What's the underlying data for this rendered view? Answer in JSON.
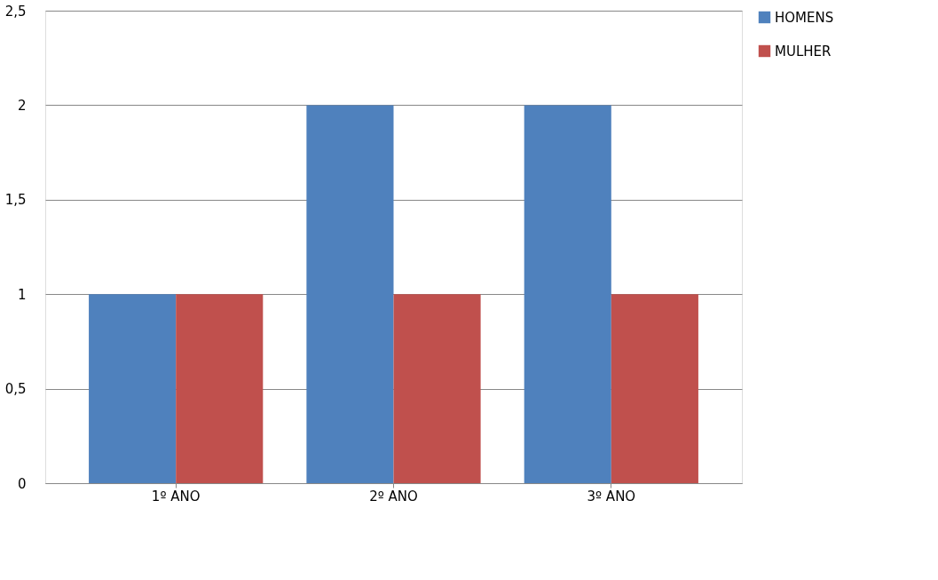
{
  "chart_data": {
    "type": "bar",
    "categories": [
      "1º ANO",
      "2º ANO",
      "3º ANO"
    ],
    "series": [
      {
        "name": "HOMENS",
        "color": "#4f81bd",
        "values": [
          1,
          2,
          2
        ]
      },
      {
        "name": "MULHER",
        "color": "#c0504d",
        "values": [
          1,
          1,
          1
        ]
      }
    ],
    "ylim": [
      0,
      2.5
    ],
    "yticks": [
      0,
      {
        "value": 0.5,
        "label": "0,5"
      },
      1,
      {
        "value": 1.5,
        "label": "1,5"
      },
      2,
      {
        "value": 2.5,
        "label": "2,5"
      }
    ],
    "grid": "y",
    "legend": "right"
  }
}
